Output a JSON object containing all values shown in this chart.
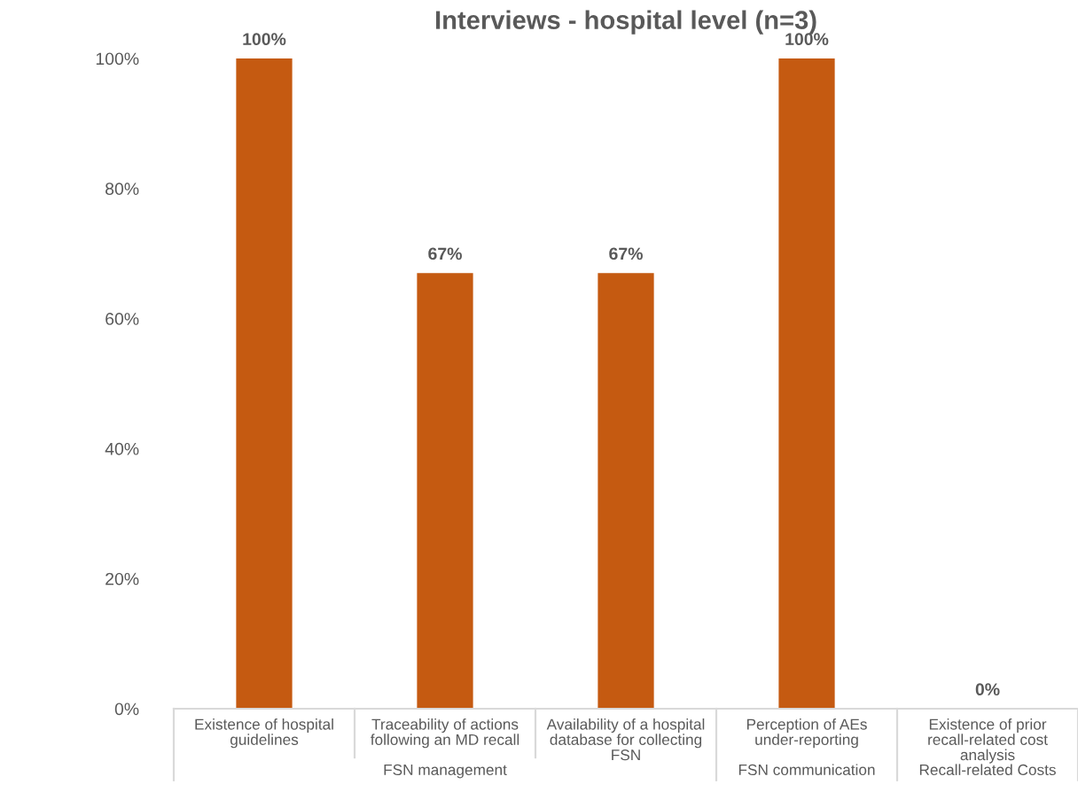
{
  "chart_data": {
    "type": "bar",
    "title": "Interviews - hospital level (n=3)",
    "categories": [
      "Existence of hospital guidelines",
      "Traceability of actions following an MD recall",
      "Availability of a hospital database for collecting FSN",
      "Perception of AEs under-reporting",
      "Existence of prior recall-related cost analysis"
    ],
    "values": [
      100,
      67,
      67,
      100,
      0
    ],
    "value_labels": [
      "100%",
      "67%",
      "67%",
      "100%",
      "0%"
    ],
    "color": "#c55a11",
    "ylim": [
      0,
      100
    ],
    "yticks": [
      {
        "value": 0,
        "label": "0%"
      },
      {
        "value": 20,
        "label": "20%"
      },
      {
        "value": 40,
        "label": "40%"
      },
      {
        "value": 60,
        "label": "60%"
      },
      {
        "value": 80,
        "label": "80%"
      },
      {
        "value": 100,
        "label": "100%"
      }
    ],
    "annotations": [
      "FSN management",
      "FSN communication",
      "Recall-related Costs"
    ],
    "grid": false,
    "legend": false
  }
}
